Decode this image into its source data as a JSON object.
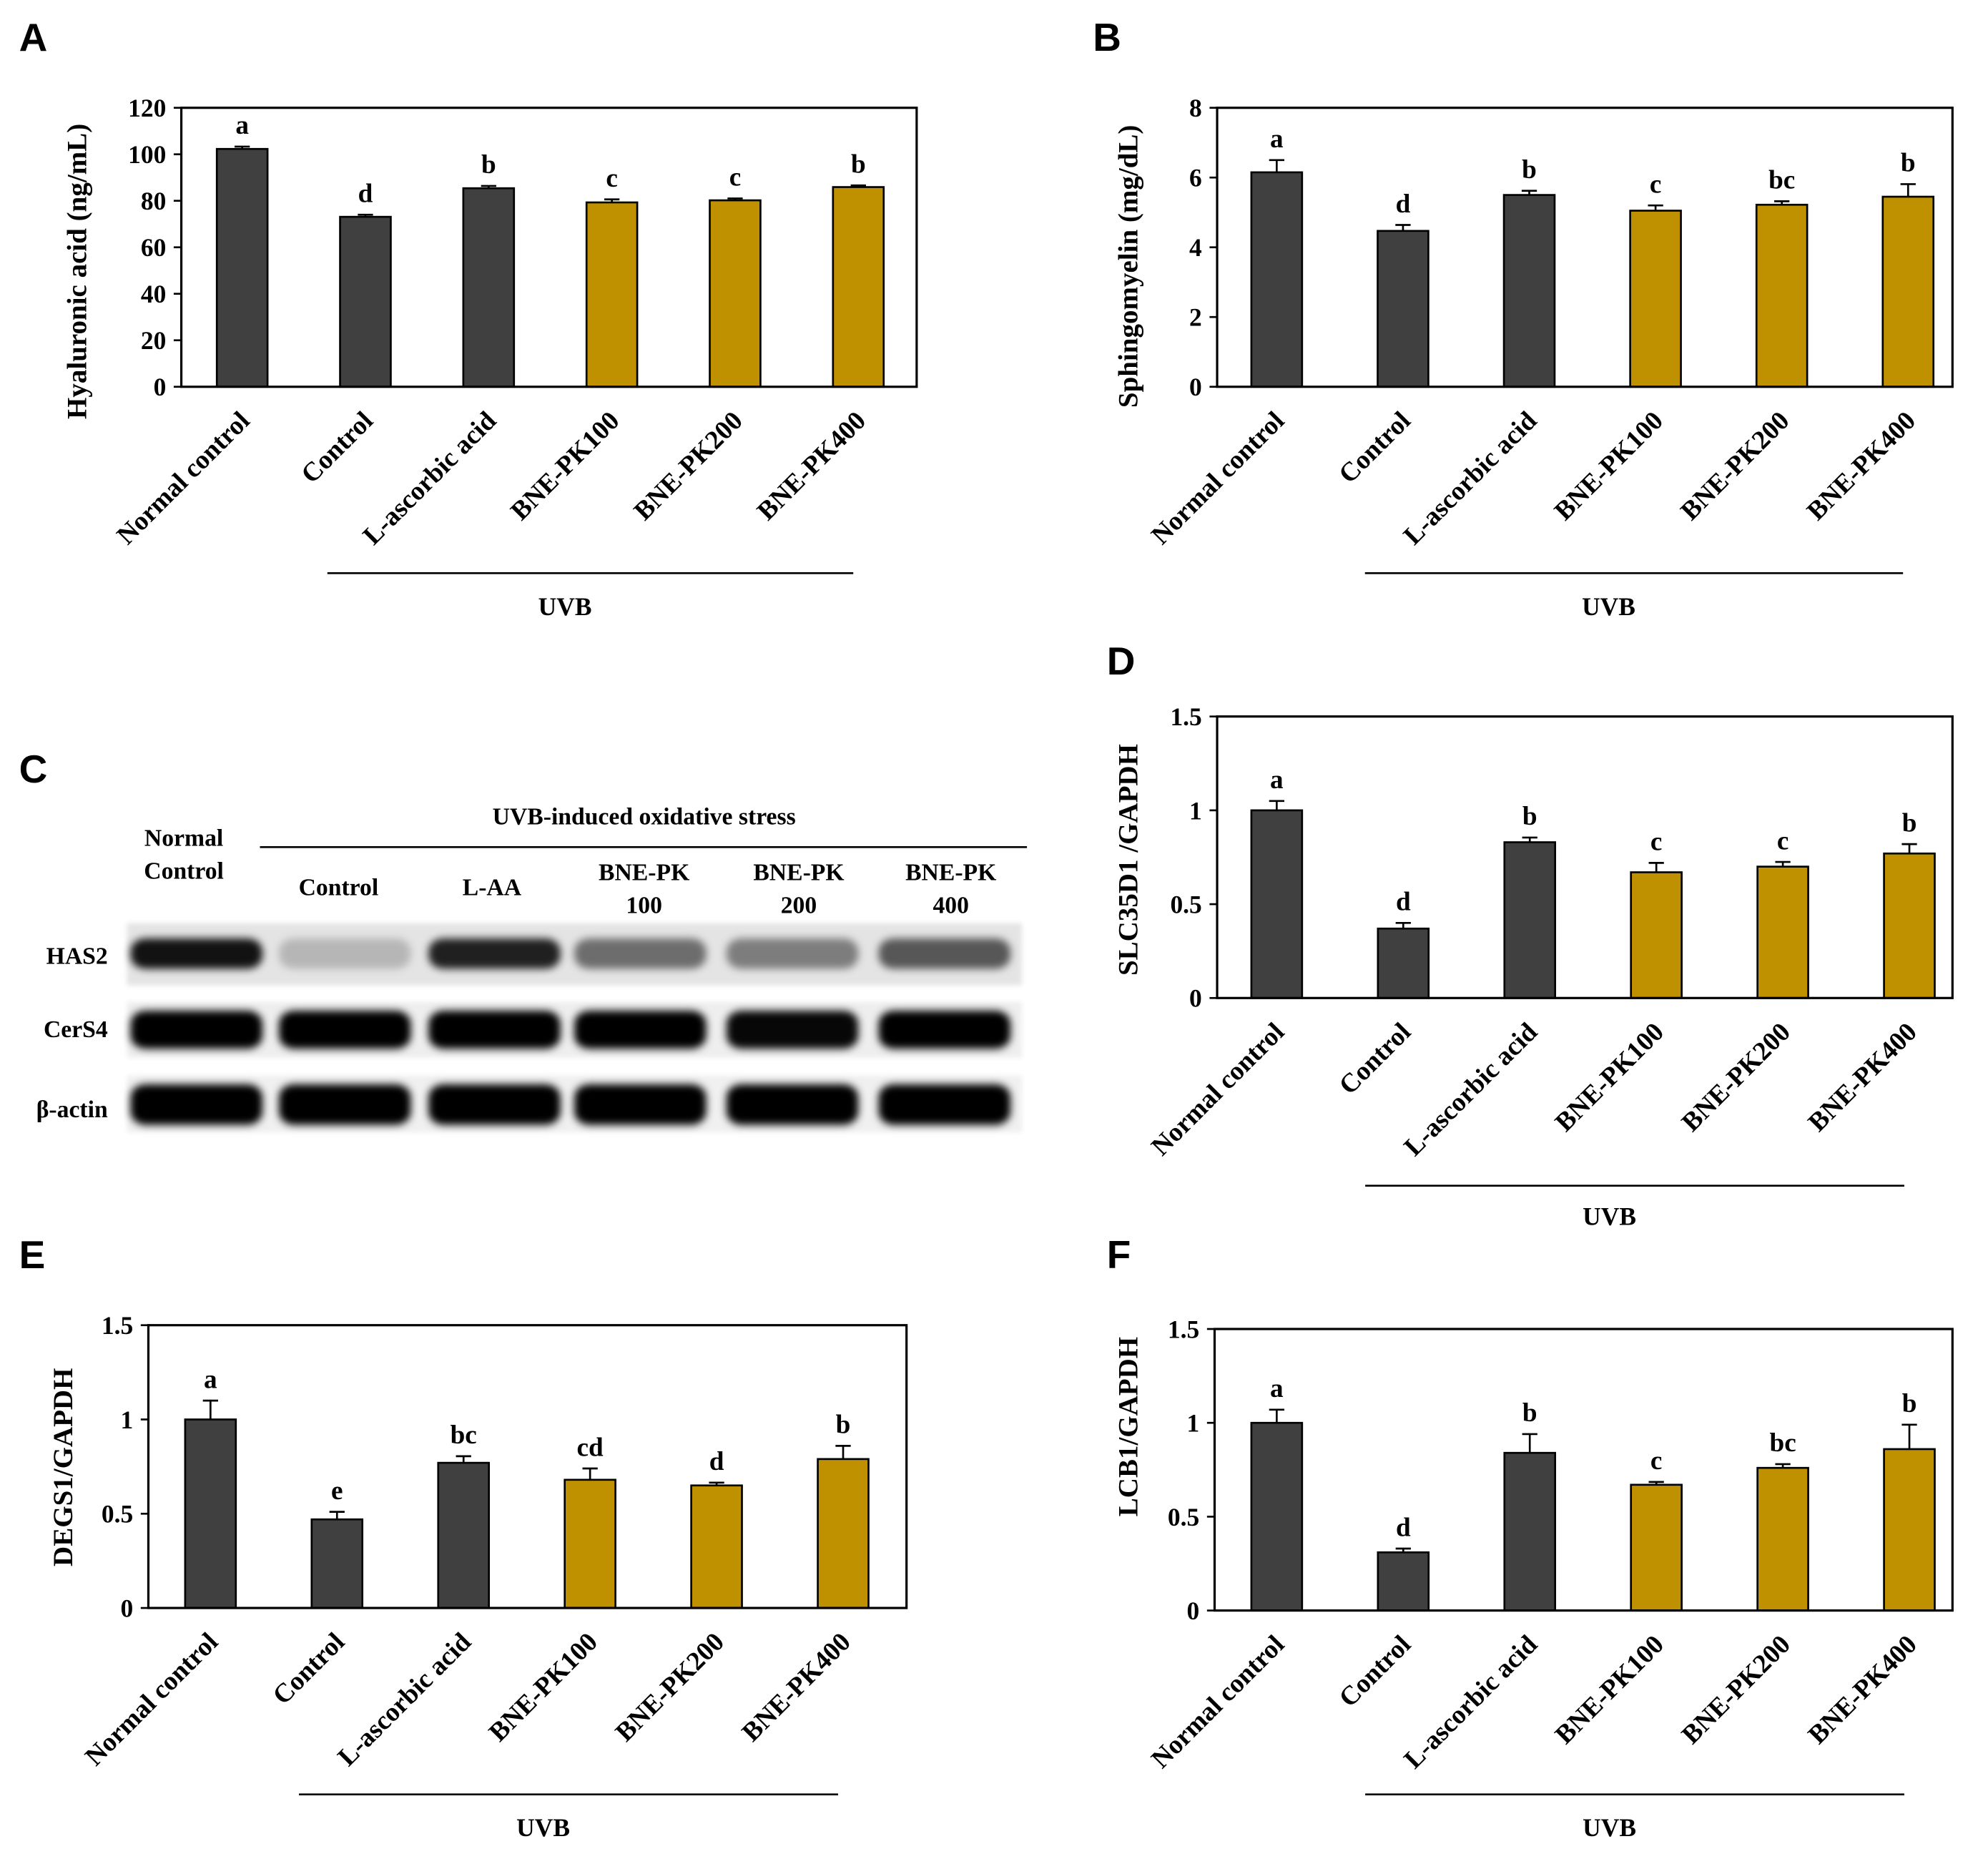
{
  "chart_data": [
    {
      "panel_label": "A",
      "type": "bar",
      "ylabel": "Hyaluronic acid (ng/mL)",
      "ylim": [
        0,
        120
      ],
      "yticks": [
        0,
        20,
        40,
        60,
        80,
        100,
        120
      ],
      "ytick_labels": [
        "0",
        "20",
        "40",
        "60",
        "80",
        "100",
        "120"
      ],
      "categories": [
        "Normal control",
        "Control",
        "L-ascorbic acid",
        "BNE-PK100",
        "BNE-PK200",
        "BNE-PK400"
      ],
      "values": [
        102.3,
        73.1,
        85.4,
        79.3,
        80.2,
        85.9
      ],
      "errors": [
        1.0,
        0.9,
        1.0,
        1.3,
        0.8,
        0.7
      ],
      "significance_letters": [
        "a",
        "d",
        "b",
        "c",
        "c",
        "b"
      ],
      "bar_colors": [
        "#404040",
        "#404040",
        "#404040",
        "#bf9000",
        "#bf9000",
        "#bf9000"
      ],
      "group": {
        "label": "UVB",
        "first_index": 1,
        "last_index": 5
      }
    },
    {
      "panel_label": "B",
      "type": "bar",
      "ylabel": "Sphingomyelin (mg/dL)",
      "ylim": [
        0,
        8
      ],
      "yticks": [
        0,
        2,
        4,
        6,
        8
      ],
      "ytick_labels": [
        "0",
        "2",
        "4",
        "6",
        "8"
      ],
      "categories": [
        "Normal control",
        "Control",
        "L-ascorbic acid",
        "BNE-PK100",
        "BNE-PK200",
        "BNE-PK400"
      ],
      "values": [
        6.15,
        4.47,
        5.5,
        5.05,
        5.22,
        5.45
      ],
      "errors": [
        0.35,
        0.17,
        0.12,
        0.15,
        0.1,
        0.36
      ],
      "significance_letters": [
        "a",
        "d",
        "b",
        "c",
        "bc",
        "b"
      ],
      "bar_colors": [
        "#404040",
        "#404040",
        "#404040",
        "#bf9000",
        "#bf9000",
        "#bf9000"
      ],
      "group": {
        "label": "UVB",
        "first_index": 1,
        "last_index": 5
      }
    },
    {
      "panel_label": "D",
      "type": "bar",
      "ylabel": "SLC35D1 /GAPDH",
      "ylim": [
        0,
        1.5
      ],
      "yticks": [
        0,
        0.5,
        1,
        1.5
      ],
      "ytick_labels": [
        "0",
        "0.5",
        "1",
        "1.5"
      ],
      "categories": [
        "Normal control",
        "Control",
        "L-ascorbic acid",
        "BNE-PK100",
        "BNE-PK200",
        "BNE-PK400"
      ],
      "values": [
        1.0,
        0.37,
        0.83,
        0.67,
        0.7,
        0.77
      ],
      "errors": [
        0.05,
        0.03,
        0.025,
        0.05,
        0.025,
        0.05
      ],
      "significance_letters": [
        "a",
        "d",
        "b",
        "c",
        "c",
        "b"
      ],
      "bar_colors": [
        "#404040",
        "#404040",
        "#404040",
        "#bf9000",
        "#bf9000",
        "#bf9000"
      ],
      "group": {
        "label": "UVB",
        "first_index": 1,
        "last_index": 5
      }
    },
    {
      "panel_label": "E",
      "type": "bar",
      "ylabel": "DEGS1/GAPDH",
      "ylim": [
        0,
        1.5
      ],
      "yticks": [
        0,
        0.5,
        1,
        1.5
      ],
      "ytick_labels": [
        "0",
        "0.5",
        "1",
        "1.5"
      ],
      "categories": [
        "Normal control",
        "Control",
        "L-ascorbic acid",
        "BNE-PK100",
        "BNE-PK200",
        "BNE-PK400"
      ],
      "values": [
        1.0,
        0.47,
        0.77,
        0.68,
        0.65,
        0.79
      ],
      "errors": [
        0.1,
        0.04,
        0.035,
        0.06,
        0.015,
        0.07
      ],
      "significance_letters": [
        "a",
        "e",
        "bc",
        "cd",
        "d",
        "b"
      ],
      "bar_colors": [
        "#404040",
        "#404040",
        "#404040",
        "#bf9000",
        "#bf9000",
        "#bf9000"
      ],
      "group": {
        "label": "UVB",
        "first_index": 1,
        "last_index": 5
      }
    },
    {
      "panel_label": "F",
      "type": "bar",
      "ylabel": "LCB1/GAPDH",
      "ylim": [
        0,
        1.5
      ],
      "yticks": [
        0,
        0.5,
        1,
        1.5
      ],
      "ytick_labels": [
        "0",
        "0.5",
        "1",
        "1.5"
      ],
      "categories": [
        "Normal control",
        "Control",
        "L-ascorbic acid",
        "BNE-PK100",
        "BNE-PK200",
        "BNE-PK400"
      ],
      "values": [
        1.0,
        0.31,
        0.84,
        0.67,
        0.76,
        0.86
      ],
      "errors": [
        0.07,
        0.02,
        0.1,
        0.015,
        0.02,
        0.13
      ],
      "significance_letters": [
        "a",
        "d",
        "b",
        "c",
        "bc",
        "b"
      ],
      "bar_colors": [
        "#404040",
        "#404040",
        "#404040",
        "#bf9000",
        "#bf9000",
        "#bf9000"
      ],
      "group": {
        "label": "UVB",
        "first_index": 1,
        "last_index": 5
      }
    }
  ],
  "western_blot": {
    "panel_label": "C",
    "reference_lane_label": [
      "Normal",
      "Control"
    ],
    "treatment_header": "UVB-induced oxidative stress",
    "treatment_lanes": [
      {
        "label_lines": [
          "Control"
        ]
      },
      {
        "label_lines": [
          "L-AA"
        ]
      },
      {
        "label_lines": [
          "BNE-PK",
          "100"
        ]
      },
      {
        "label_lines": [
          "BNE-PK",
          "200"
        ]
      },
      {
        "label_lines": [
          "BNE-PK",
          "400"
        ]
      }
    ],
    "rows": [
      {
        "protein": "HAS2",
        "band_intensity": [
          0.92,
          0.2,
          0.86,
          0.52,
          0.45,
          0.62
        ]
      },
      {
        "protein": "CerS4",
        "band_intensity": [
          1,
          1,
          1,
          1,
          0.97,
          1
        ]
      },
      {
        "protein": "β-actin",
        "band_intensity": [
          1,
          1,
          1,
          1,
          1,
          1
        ]
      }
    ],
    "band_color": "#000000",
    "membrane_colors": [
      "#e4e4e4",
      "#eeeeee",
      "#f0f0f0"
    ]
  }
}
